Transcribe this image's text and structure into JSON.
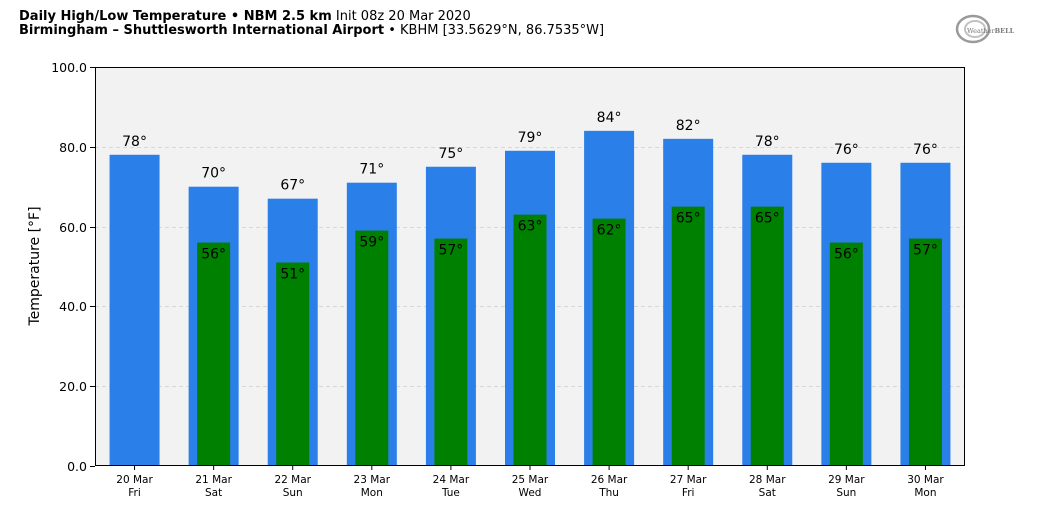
{
  "header": {
    "line1_bold": "Daily High/Low Temperature • NBM 2.5 km",
    "line1_rest": "Init 08z 20 Mar 2020",
    "line2_bold": "Birmingham – Shuttlesworth International Airport",
    "line2_rest": "• KBHM [33.5629°N, 86.7535°W]"
  },
  "logo": {
    "text_light": "Weather",
    "text_bold": "BELL",
    "icon": "weatherbell-logo"
  },
  "colors": {
    "high": "#2b7fe8",
    "low": "#008000",
    "plot_bg": "#f2f2f2"
  },
  "chart_data": {
    "type": "bar",
    "title": "Daily High/Low Temperature • NBM 2.5 km",
    "ylabel": "Temperature [°F]",
    "xlabel": "",
    "ylim": [
      0,
      100
    ],
    "yticks": [
      "0.0",
      "20.0",
      "40.0",
      "60.0",
      "80.0",
      "100.0"
    ],
    "grid": true,
    "categories": [
      {
        "date": "20 Mar",
        "day": "Fri"
      },
      {
        "date": "21 Mar",
        "day": "Sat"
      },
      {
        "date": "22 Mar",
        "day": "Sun"
      },
      {
        "date": "23 Mar",
        "day": "Mon"
      },
      {
        "date": "24 Mar",
        "day": "Tue"
      },
      {
        "date": "25 Mar",
        "day": "Wed"
      },
      {
        "date": "26 Mar",
        "day": "Thu"
      },
      {
        "date": "27 Mar",
        "day": "Fri"
      },
      {
        "date": "28 Mar",
        "day": "Sat"
      },
      {
        "date": "29 Mar",
        "day": "Sun"
      },
      {
        "date": "30 Mar",
        "day": "Mon"
      }
    ],
    "series": [
      {
        "values": [
          78,
          70,
          67,
          71,
          75,
          79,
          84,
          82,
          78,
          76,
          76
        ],
        "labels": [
          "78°",
          "70°",
          "67°",
          "71°",
          "75°",
          "79°",
          "84°",
          "82°",
          "78°",
          "76°",
          "76°"
        ]
      },
      {
        "values": [
          null,
          56,
          51,
          59,
          57,
          63,
          62,
          65,
          65,
          56,
          57
        ],
        "labels": [
          "",
          "56°",
          "51°",
          "59°",
          "57°",
          "63°",
          "62°",
          "65°",
          "65°",
          "56°",
          "57°"
        ]
      }
    ]
  }
}
